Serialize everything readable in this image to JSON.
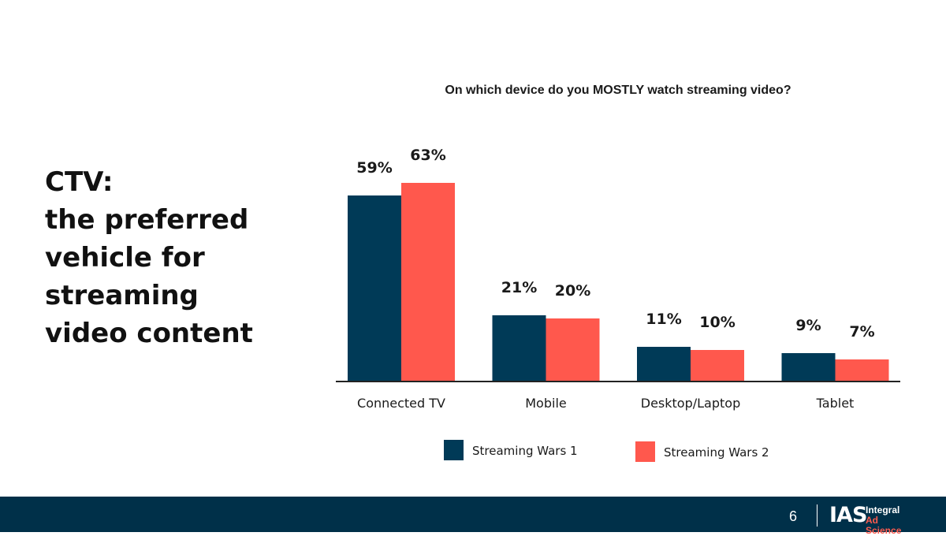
{
  "headline": {
    "lines": [
      "CTV:",
      "the preferred",
      "vehicle for",
      "streaming",
      "video content"
    ]
  },
  "chart_data": {
    "type": "bar",
    "title": "On which device do you MOSTLY watch streaming video?",
    "categories": [
      "Connected TV",
      "Mobile",
      "Desktop/Laptop",
      "Tablet"
    ],
    "series": [
      {
        "name": "Streaming Wars 1",
        "color": "#003a57",
        "values": [
          59,
          21,
          11,
          9
        ],
        "labels": [
          "59%",
          "21%",
          "11%",
          "9%"
        ]
      },
      {
        "name": "Streaming Wars 2",
        "color": "#ff584d",
        "values": [
          63,
          20,
          10,
          7
        ],
        "labels": [
          "63%",
          "20%",
          "10%",
          "7%"
        ]
      }
    ],
    "ylim": [
      0,
      63
    ],
    "grid": false,
    "legend": "bottom"
  },
  "footer": {
    "page_number": "6",
    "logo_mark_a": "I",
    "logo_mark_b": "AS",
    "logo_line1": "Integral",
    "logo_line2": "Ad Science",
    "background": "#003049"
  }
}
